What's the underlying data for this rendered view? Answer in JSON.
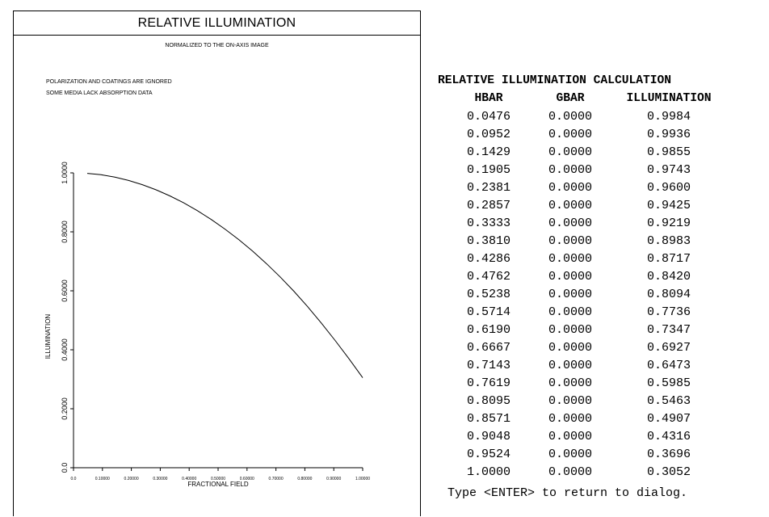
{
  "plot": {
    "title": "RELATIVE ILLUMINATION",
    "subtitle": "NORMALIZED TO THE ON-AXIS IMAGE",
    "notes": [
      "POLARIZATION AND COATINGS ARE IGNORED",
      "SOME MEDIA LACK ABSORPTION DATA"
    ]
  },
  "chart_data": {
    "type": "line",
    "xlabel": "FRACTIONAL FIELD",
    "ylabel": "ILLUMINATION",
    "xlim": [
      0,
      1
    ],
    "ylim": [
      0,
      1
    ],
    "x_ticks": [
      "0.0",
      "0.10000",
      "0.20000",
      "0.30000",
      "0.40000",
      "0.50000",
      "0.60000",
      "0.70000",
      "0.80000",
      "0.90000",
      "1.00000"
    ],
    "y_ticks": [
      "0.0",
      "0.2000",
      "0.4000",
      "0.6000",
      "0.8000",
      "1.0000"
    ],
    "y_tick_values": [
      0,
      0.2,
      0.4,
      0.6,
      0.8,
      1.0
    ],
    "grid": false,
    "series": [
      {
        "x": [
          0.0476,
          0.0952,
          0.1429,
          0.1905,
          0.2381,
          0.2857,
          0.3333,
          0.381,
          0.4286,
          0.4762,
          0.5238,
          0.5714,
          0.619,
          0.6667,
          0.7143,
          0.7619,
          0.8095,
          0.8571,
          0.9048,
          0.9524,
          1.0
        ],
        "y": [
          0.9984,
          0.9936,
          0.9855,
          0.9743,
          0.96,
          0.9425,
          0.9219,
          0.8983,
          0.8717,
          0.842,
          0.8094,
          0.7736,
          0.7347,
          0.6927,
          0.6473,
          0.5985,
          0.5463,
          0.4907,
          0.4316,
          0.3696,
          0.3052
        ]
      }
    ]
  },
  "table": {
    "title": "RELATIVE ILLUMINATION CALCULATION",
    "headers": [
      "HBAR",
      "GBAR",
      "ILLUMINATION"
    ],
    "rows": [
      [
        "0.0476",
        "0.0000",
        "0.9984"
      ],
      [
        "0.0952",
        "0.0000",
        "0.9936"
      ],
      [
        "0.1429",
        "0.0000",
        "0.9855"
      ],
      [
        "0.1905",
        "0.0000",
        "0.9743"
      ],
      [
        "0.2381",
        "0.0000",
        "0.9600"
      ],
      [
        "0.2857",
        "0.0000",
        "0.9425"
      ],
      [
        "0.3333",
        "0.0000",
        "0.9219"
      ],
      [
        "0.3810",
        "0.0000",
        "0.8983"
      ],
      [
        "0.4286",
        "0.0000",
        "0.8717"
      ],
      [
        "0.4762",
        "0.0000",
        "0.8420"
      ],
      [
        "0.5238",
        "0.0000",
        "0.8094"
      ],
      [
        "0.5714",
        "0.0000",
        "0.7736"
      ],
      [
        "0.6190",
        "0.0000",
        "0.7347"
      ],
      [
        "0.6667",
        "0.0000",
        "0.6927"
      ],
      [
        "0.7143",
        "0.0000",
        "0.6473"
      ],
      [
        "0.7619",
        "0.0000",
        "0.5985"
      ],
      [
        "0.8095",
        "0.0000",
        "0.5463"
      ],
      [
        "0.8571",
        "0.0000",
        "0.4907"
      ],
      [
        "0.9048",
        "0.0000",
        "0.4316"
      ],
      [
        "0.9524",
        "0.0000",
        "0.3696"
      ],
      [
        "1.0000",
        "0.0000",
        "0.3052"
      ]
    ],
    "footer": "Type <ENTER> to return to dialog."
  }
}
